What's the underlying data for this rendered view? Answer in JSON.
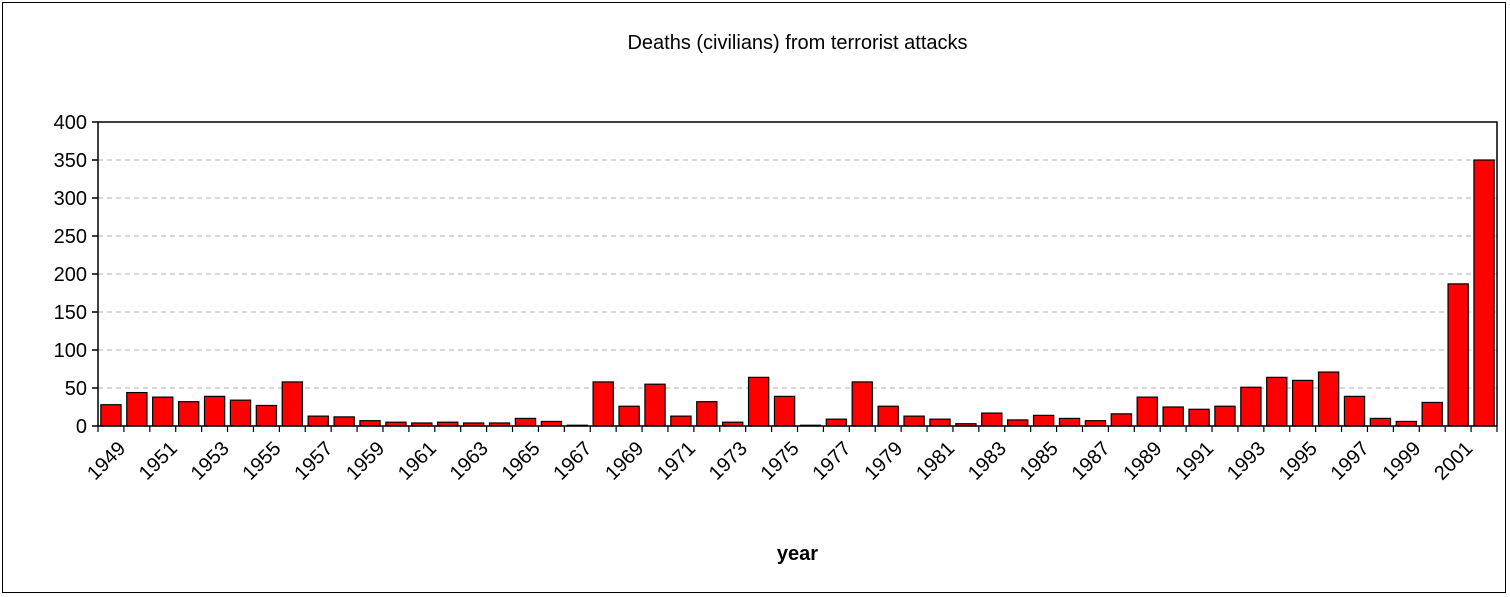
{
  "chart_data": {
    "type": "bar",
    "title": "Deaths (civilians) from terrorist attacks",
    "xlabel": "year",
    "ylabel": "",
    "ylim": [
      0,
      400
    ],
    "yticks": [
      0,
      50,
      100,
      150,
      200,
      250,
      300,
      350,
      400
    ],
    "grid": "horizontal dashed",
    "bar_color": "#ff0000",
    "categories": [
      "1949",
      "1950",
      "1951",
      "1952",
      "1953",
      "1954",
      "1955",
      "1956",
      "1957",
      "1958",
      "1959",
      "1960",
      "1961",
      "1962",
      "1963",
      "1964",
      "1965",
      "1966",
      "1967",
      "1968",
      "1969",
      "1970",
      "1971",
      "1972",
      "1973",
      "1974",
      "1975",
      "1976",
      "1977",
      "1978",
      "1979",
      "1980",
      "1981",
      "1982",
      "1983",
      "1984",
      "1985",
      "1986",
      "1987",
      "1988",
      "1989",
      "1990",
      "1991",
      "1992",
      "1993",
      "1994",
      "1995",
      "1996",
      "1997",
      "1998",
      "1999",
      "2000",
      "2001",
      "2002"
    ],
    "tick_labels_shown": [
      "1949",
      "1951",
      "1953",
      "1955",
      "1957",
      "1959",
      "1961",
      "1963",
      "1965",
      "1967",
      "1969",
      "1971",
      "1973",
      "1975",
      "1977",
      "1979",
      "1981",
      "1983",
      "1985",
      "1987",
      "1989",
      "1991",
      "1993",
      "1995",
      "1997",
      "1999",
      "2001"
    ],
    "values": [
      28,
      44,
      38,
      32,
      39,
      34,
      27,
      58,
      13,
      12,
      7,
      5,
      4,
      5,
      4,
      4,
      10,
      6,
      1,
      58,
      26,
      55,
      13,
      32,
      5,
      64,
      39,
      1,
      9,
      58,
      26,
      13,
      9,
      3,
      17,
      8,
      14,
      10,
      7,
      16,
      38,
      25,
      22,
      26,
      51,
      64,
      60,
      71,
      39,
      10,
      6,
      31,
      187,
      350
    ]
  }
}
